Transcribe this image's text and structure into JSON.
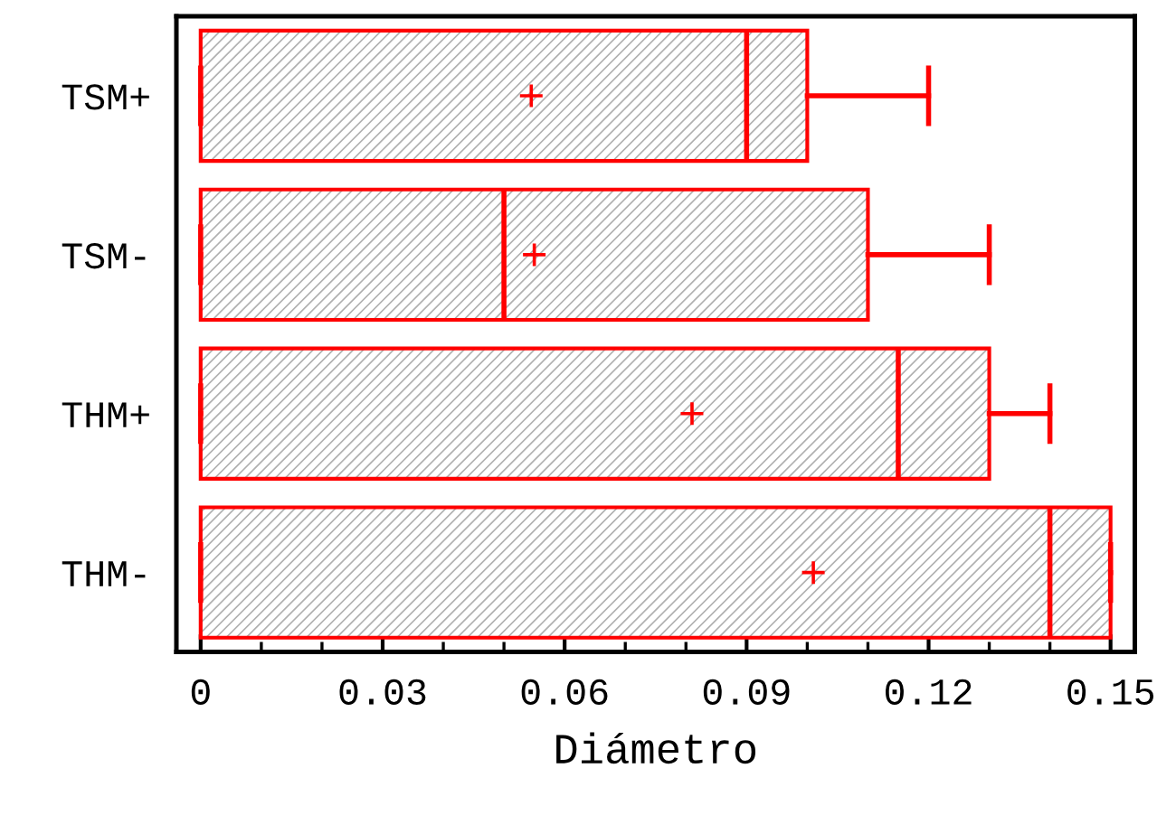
{
  "chart_data": {
    "type": "box",
    "orientation": "horizontal",
    "xlabel": "Diámetro",
    "categories": [
      "TSM+",
      "TSM-",
      "THM+",
      "THM-"
    ],
    "series": [
      {
        "color": "#ff0000",
        "boxes": [
          {
            "low": 0,
            "q1": 0,
            "median": 0.09,
            "q3": 0.1,
            "high": 0.12,
            "mean": 0.0545
          },
          {
            "low": 0,
            "q1": 0,
            "median": 0.05,
            "q3": 0.11,
            "high": 0.13,
            "mean": 0.055
          },
          {
            "low": 0,
            "q1": 0,
            "median": 0.115,
            "q3": 0.13,
            "high": 0.14,
            "mean": 0.081
          },
          {
            "low": 0,
            "q1": 0,
            "median": 0.14,
            "q3": 0.15,
            "high": 0.15,
            "mean": 0.101
          }
        ]
      }
    ],
    "xlim": [
      -0.004,
      0.154
    ],
    "xticks": [
      0,
      0.03,
      0.06,
      0.09,
      0.12,
      0.15
    ],
    "grid": false,
    "legend": false
  }
}
